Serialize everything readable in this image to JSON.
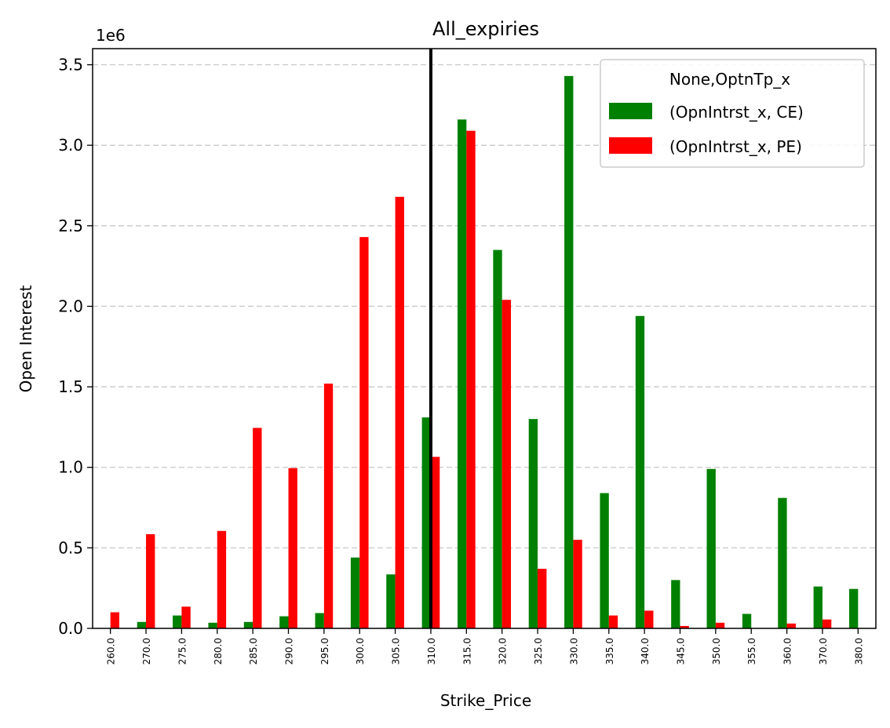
{
  "chart_data": {
    "type": "bar",
    "title": "All_expiries",
    "xlabel": "Strike_Price",
    "ylabel": "Open Interest",
    "y_scale_label": "1e6",
    "ylim": [
      0,
      3.6
    ],
    "y_ticks": [
      0.0,
      0.5,
      1.0,
      1.5,
      2.0,
      2.5,
      3.0,
      3.5
    ],
    "y_tick_labels": [
      "0.0",
      "0.5",
      "1.0",
      "1.5",
      "2.0",
      "2.5",
      "3.0",
      "3.5"
    ],
    "grid": "y-dashed",
    "categories": [
      "260.0",
      "270.0",
      "275.0",
      "280.0",
      "285.0",
      "290.0",
      "295.0",
      "300.0",
      "305.0",
      "310.0",
      "315.0",
      "320.0",
      "325.0",
      "330.0",
      "335.0",
      "340.0",
      "345.0",
      "350.0",
      "355.0",
      "360.0",
      "370.0",
      "380.0"
    ],
    "series": [
      {
        "name": "(OpnIntrst_x, CE)",
        "color": "#008000",
        "values": [
          0,
          0.04,
          0.08,
          0.035,
          0.04,
          0.075,
          0.095,
          0.44,
          0.335,
          1.31,
          3.16,
          2.35,
          1.3,
          3.43,
          0.84,
          1.94,
          0.3,
          0.99,
          0.09,
          0.81,
          0.26,
          0.245
        ]
      },
      {
        "name": "(OpnIntrst_x, PE)",
        "color": "#ff0000",
        "values": [
          0.1,
          0.585,
          0.135,
          0.605,
          1.245,
          0.995,
          1.52,
          2.43,
          2.68,
          1.065,
          3.09,
          2.04,
          0.37,
          0.55,
          0.08,
          0.11,
          0.015,
          0.035,
          0,
          0.03,
          0.055,
          0
        ]
      }
    ],
    "vertical_line": {
      "category_position": 9.0,
      "color": "#000000"
    },
    "legend": {
      "title": "None,OptnTp_x",
      "placement": "top-right"
    }
  }
}
